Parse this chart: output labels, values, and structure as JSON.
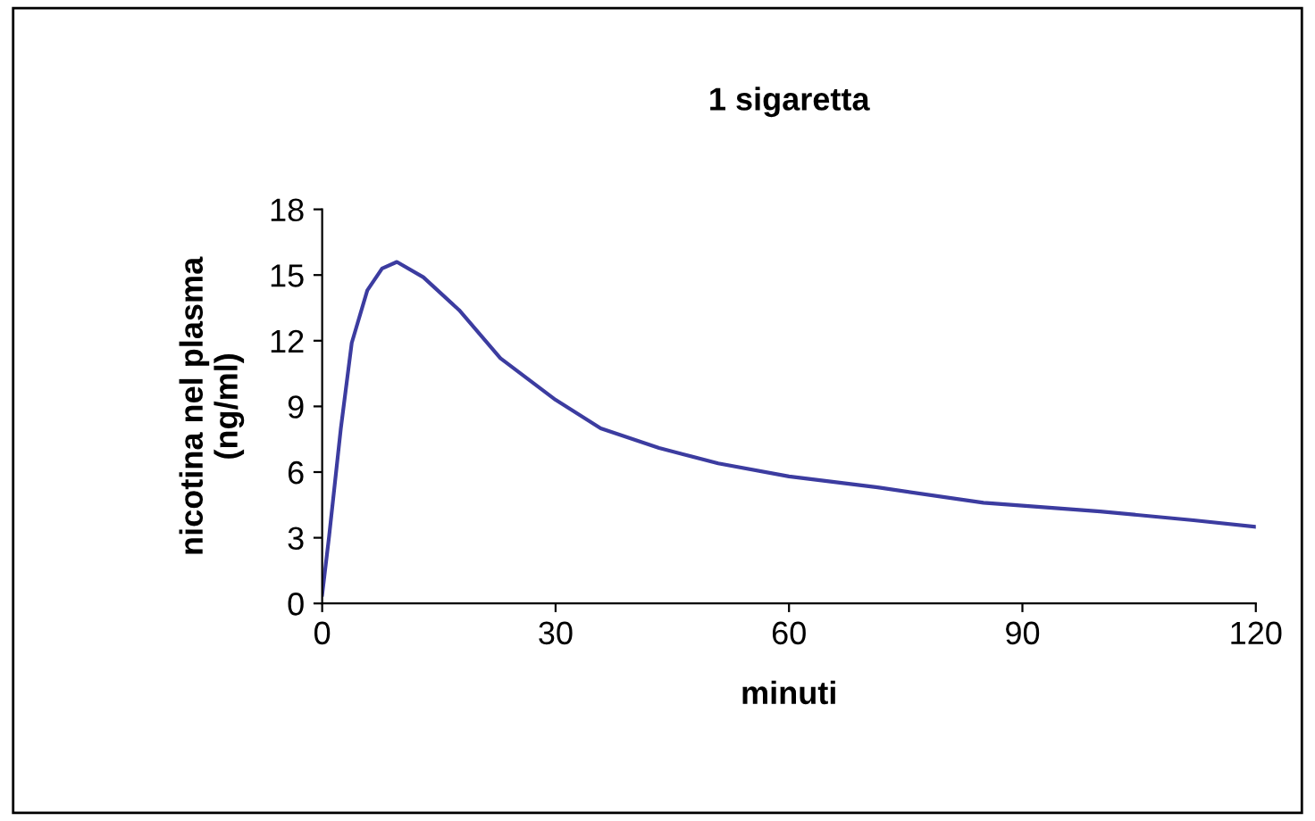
{
  "chart_data": {
    "type": "line",
    "title": "1 sigaretta",
    "xlabel": "minuti",
    "ylabel": "nicotina nel plasma\n(ng/ml)",
    "series": [
      {
        "color": "#3c3ca0",
        "x": [
          0,
          0.9,
          2.4,
          3.8,
          5.8,
          7.7,
          9.6,
          13,
          17.6,
          22.9,
          30,
          35.8,
          43.3,
          50.9,
          60,
          71.4,
          85,
          100,
          112,
          120
        ],
        "values": [
          0.4,
          3.1,
          8.0,
          11.9,
          14.3,
          15.3,
          15.6,
          14.9,
          13.4,
          11.2,
          9.3,
          8.0,
          7.1,
          6.4,
          5.8,
          5.3,
          4.6,
          4.2,
          3.8,
          3.5
        ]
      }
    ],
    "xlim": [
      0,
      120
    ],
    "xticks": [
      0,
      30,
      60,
      90,
      120
    ],
    "ylim": [
      0,
      18
    ],
    "yticks": [
      0,
      3,
      6,
      9,
      12,
      15,
      18
    ],
    "grid": false,
    "marker": "none",
    "line_style": "solid"
  }
}
